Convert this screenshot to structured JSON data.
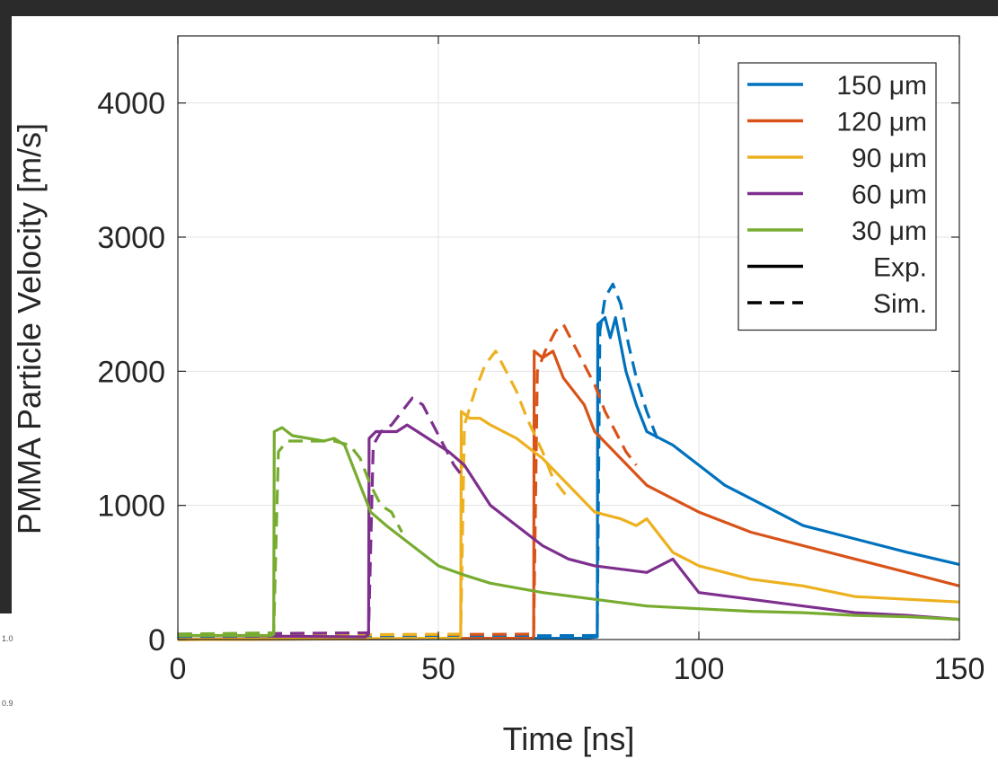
{
  "page_fragments": [
    "1.0",
    "0.9"
  ],
  "chart_data": {
    "type": "line",
    "title": "",
    "xlabel": "Time [ns]",
    "ylabel": "PMMA Particle Velocity [m/s]",
    "xlim": [
      0,
      150
    ],
    "ylim": [
      0,
      4500
    ],
    "x_ticks": [
      0,
      50,
      100,
      150
    ],
    "y_ticks": [
      0,
      1000,
      2000,
      3000,
      4000
    ],
    "grid": true,
    "legend_position": "top-right",
    "legend": [
      {
        "name": "150 μm",
        "color": "#0072BD",
        "dash": false
      },
      {
        "name": "120 μm",
        "color": "#D95319",
        "dash": false
      },
      {
        "name": "90 μm",
        "color": "#EDB120",
        "dash": false
      },
      {
        "name": "60 μm",
        "color": "#7E2F8E",
        "dash": false
      },
      {
        "name": "30 μm",
        "color": "#77AC30",
        "dash": false
      },
      {
        "name": "Exp.",
        "color": "#000000",
        "dash": false
      },
      {
        "name": "Sim.",
        "color": "#000000",
        "dash": true
      }
    ],
    "series": [
      {
        "name": "150 μm Exp.",
        "color": "#0072BD",
        "dash": false,
        "x": [
          0,
          78,
          80.5,
          80.6,
          82,
          83,
          84,
          85,
          86,
          88,
          90,
          95,
          100,
          105,
          110,
          115,
          120,
          130,
          140,
          150
        ],
        "y": [
          0,
          10,
          20,
          2350,
          2400,
          2250,
          2400,
          2200,
          2000,
          1750,
          1550,
          1450,
          1300,
          1150,
          1050,
          950,
          850,
          750,
          650,
          560
        ]
      },
      {
        "name": "150 μm Sim.",
        "color": "#0072BD",
        "dash": true,
        "x": [
          0,
          80.5,
          81,
          82,
          83.5,
          85,
          86.5,
          88,
          90,
          92
        ],
        "y": [
          20,
          30,
          2300,
          2550,
          2650,
          2500,
          2200,
          1950,
          1700,
          1500
        ]
      },
      {
        "name": "120 μm Exp.",
        "color": "#D95319",
        "dash": false,
        "x": [
          0,
          68,
          68.3,
          68.4,
          70,
          72,
          74,
          76,
          78,
          80,
          85,
          90,
          100,
          110,
          120,
          130,
          140,
          150
        ],
        "y": [
          0,
          10,
          20,
          2150,
          2100,
          2150,
          1950,
          1850,
          1750,
          1550,
          1350,
          1150,
          950,
          800,
          700,
          600,
          500,
          400
        ]
      },
      {
        "name": "120 μm Sim.",
        "color": "#D95319",
        "dash": true,
        "x": [
          0,
          68.3,
          69,
          70.5,
          72.5,
          74,
          76,
          78,
          80,
          82,
          84,
          86,
          88
        ],
        "y": [
          30,
          40,
          2000,
          2150,
          2300,
          2350,
          2200,
          2050,
          1900,
          1700,
          1550,
          1400,
          1300
        ]
      },
      {
        "name": "90 μm Exp.",
        "color": "#EDB120",
        "dash": false,
        "x": [
          0,
          54,
          54.3,
          54.4,
          56,
          58,
          60,
          65,
          70,
          75,
          80,
          85,
          88,
          90,
          95,
          100,
          110,
          120,
          130,
          140,
          150
        ],
        "y": [
          0,
          10,
          20,
          1700,
          1650,
          1650,
          1600,
          1500,
          1350,
          1150,
          950,
          900,
          850,
          900,
          650,
          550,
          450,
          400,
          320,
          300,
          280
        ]
      },
      {
        "name": "90 μm Sim.",
        "color": "#EDB120",
        "dash": true,
        "x": [
          0,
          54.3,
          55,
          57,
          59,
          61,
          63,
          65,
          67,
          70,
          72,
          75
        ],
        "y": [
          30,
          40,
          1600,
          1850,
          2050,
          2150,
          2000,
          1850,
          1650,
          1400,
          1200,
          1050
        ]
      },
      {
        "name": "60 μm Exp.",
        "color": "#7E2F8E",
        "dash": false,
        "x": [
          0,
          36,
          36.6,
          36.7,
          38,
          40,
          42,
          44,
          46,
          48,
          50,
          52,
          55,
          60,
          65,
          70,
          75,
          80,
          90,
          95,
          100,
          110,
          120,
          130,
          140,
          150
        ],
        "y": [
          30,
          20,
          40,
          1500,
          1550,
          1550,
          1550,
          1600,
          1550,
          1500,
          1450,
          1400,
          1300,
          1000,
          850,
          700,
          600,
          550,
          500,
          600,
          350,
          300,
          250,
          200,
          180,
          150
        ]
      },
      {
        "name": "60 μm Sim.",
        "color": "#7E2F8E",
        "dash": true,
        "x": [
          0,
          36.6,
          37.5,
          39,
          41,
          43,
          45,
          47,
          49,
          51,
          53,
          55
        ],
        "y": [
          40,
          50,
          1450,
          1550,
          1600,
          1700,
          1800,
          1750,
          1600,
          1450,
          1300,
          1200
        ]
      },
      {
        "name": "30 μm Exp.",
        "color": "#77AC30",
        "dash": false,
        "x": [
          0,
          18,
          18.4,
          18.5,
          20,
          22,
          25,
          28,
          30,
          32,
          33,
          35,
          37,
          40,
          45,
          50,
          55,
          60,
          70,
          80,
          90,
          100,
          110,
          120,
          130,
          140,
          150
        ],
        "y": [
          30,
          30,
          40,
          1550,
          1580,
          1520,
          1500,
          1480,
          1500,
          1450,
          1350,
          1150,
          950,
          850,
          700,
          550,
          480,
          420,
          350,
          300,
          250,
          230,
          210,
          200,
          180,
          170,
          150
        ]
      },
      {
        "name": "30 μm Sim.",
        "color": "#77AC30",
        "dash": true,
        "x": [
          0,
          18.4,
          19.3,
          21,
          24,
          27,
          30,
          33,
          35,
          37,
          39,
          41,
          43
        ],
        "y": [
          40,
          50,
          1400,
          1480,
          1480,
          1480,
          1480,
          1450,
          1350,
          1150,
          1000,
          950,
          800
        ]
      }
    ]
  }
}
